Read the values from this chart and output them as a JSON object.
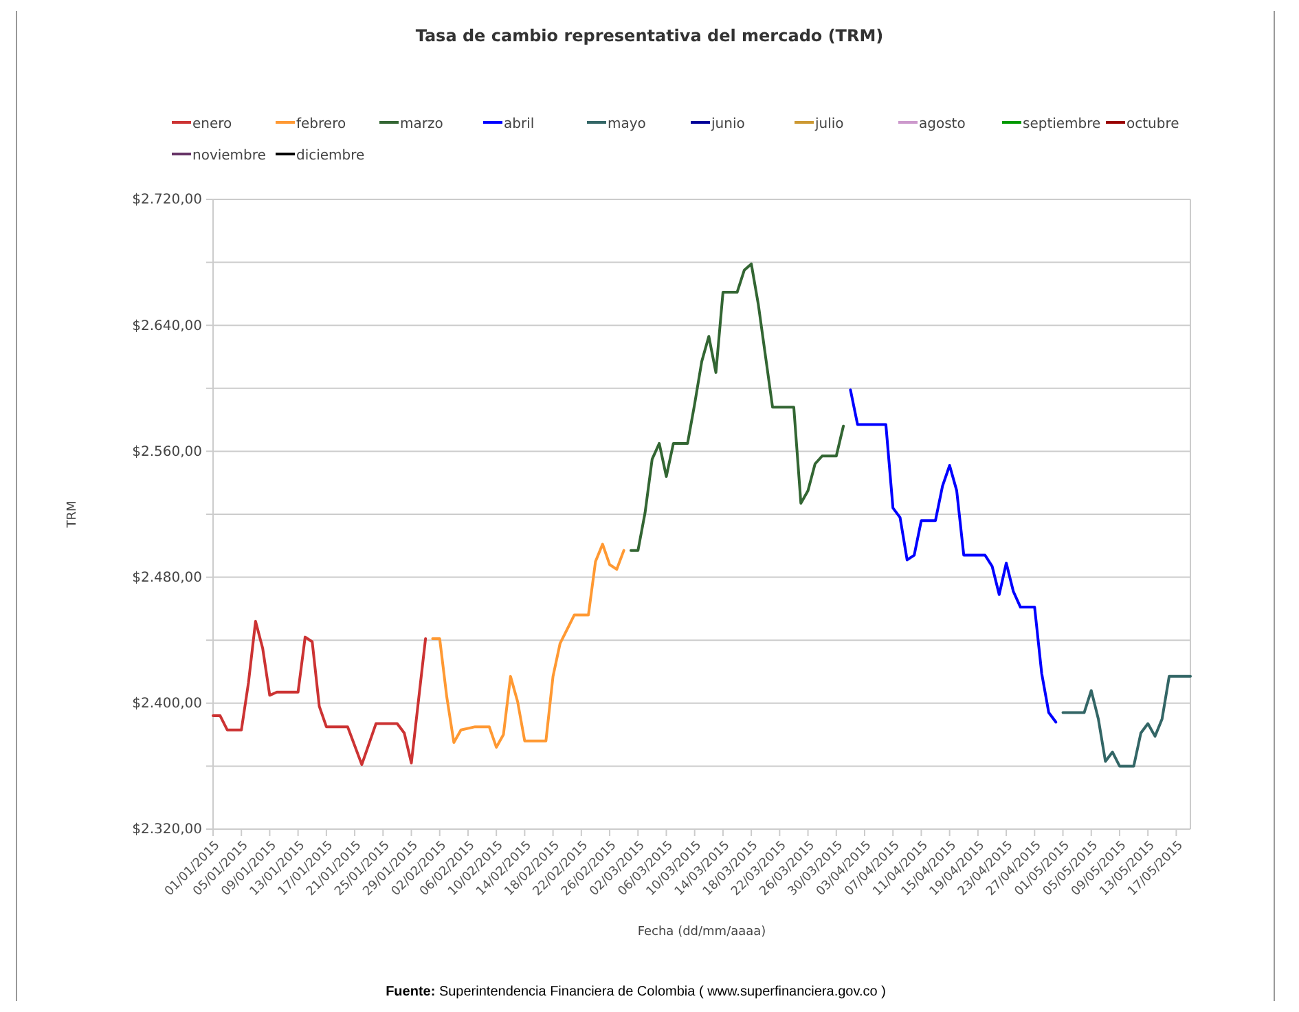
{
  "chart_data": {
    "type": "line",
    "title": "Tasa de cambio representativa del mercado (TRM)",
    "xlabel": "Fecha (dd/mm/aaaa)",
    "ylabel": "TRM",
    "legend": "top",
    "grid": "y",
    "marker": "none",
    "line_style": "solid",
    "xlim": [
      "2015-01-01",
      "2015-05-19"
    ],
    "xticks": [
      {
        "value": "2015-01-01",
        "label": "01/01/2015"
      },
      {
        "value": "2015-01-05",
        "label": "05/01/2015"
      },
      {
        "value": "2015-01-09",
        "label": "09/01/2015"
      },
      {
        "value": "2015-01-13",
        "label": "13/01/2015"
      },
      {
        "value": "2015-01-17",
        "label": "17/01/2015"
      },
      {
        "value": "2015-01-21",
        "label": "21/01/2015"
      },
      {
        "value": "2015-01-25",
        "label": "25/01/2015"
      },
      {
        "value": "2015-01-29",
        "label": "29/01/2015"
      },
      {
        "value": "2015-02-02",
        "label": "02/02/2015"
      },
      {
        "value": "2015-02-06",
        "label": "06/02/2015"
      },
      {
        "value": "2015-02-10",
        "label": "10/02/2015"
      },
      {
        "value": "2015-02-14",
        "label": "14/02/2015"
      },
      {
        "value": "2015-02-18",
        "label": "18/02/2015"
      },
      {
        "value": "2015-02-22",
        "label": "22/02/2015"
      },
      {
        "value": "2015-02-26",
        "label": "26/02/2015"
      },
      {
        "value": "2015-03-02",
        "label": "02/03/2015"
      },
      {
        "value": "2015-03-06",
        "label": "06/03/2015"
      },
      {
        "value": "2015-03-10",
        "label": "10/03/2015"
      },
      {
        "value": "2015-03-14",
        "label": "14/03/2015"
      },
      {
        "value": "2015-03-18",
        "label": "18/03/2015"
      },
      {
        "value": "2015-03-22",
        "label": "22/03/2015"
      },
      {
        "value": "2015-03-26",
        "label": "26/03/2015"
      },
      {
        "value": "2015-03-30",
        "label": "30/03/2015"
      },
      {
        "value": "2015-04-03",
        "label": "03/04/2015"
      },
      {
        "value": "2015-04-07",
        "label": "07/04/2015"
      },
      {
        "value": "2015-04-11",
        "label": "11/04/2015"
      },
      {
        "value": "2015-04-15",
        "label": "15/04/2015"
      },
      {
        "value": "2015-04-19",
        "label": "19/04/2015"
      },
      {
        "value": "2015-04-23",
        "label": "23/04/2015"
      },
      {
        "value": "2015-04-27",
        "label": "27/04/2015"
      },
      {
        "value": "2015-05-01",
        "label": "01/05/2015"
      },
      {
        "value": "2015-05-05",
        "label": "05/05/2015"
      },
      {
        "value": "2015-05-09",
        "label": "09/05/2015"
      },
      {
        "value": "2015-05-13",
        "label": "13/05/2015"
      },
      {
        "value": "2015-05-17",
        "label": "17/05/2015"
      }
    ],
    "ylim": [
      2320,
      2720
    ],
    "yticks": [
      {
        "value": 2320,
        "label": "$2.320,00"
      },
      {
        "value": 2360,
        "label": null
      },
      {
        "value": 2400,
        "label": "$2.400,00"
      },
      {
        "value": 2440,
        "label": null
      },
      {
        "value": 2480,
        "label": "$2.480,00"
      },
      {
        "value": 2520,
        "label": null
      },
      {
        "value": 2560,
        "label": "$2.560,00"
      },
      {
        "value": 2600,
        "label": null
      },
      {
        "value": 2640,
        "label": "$2.640,00"
      },
      {
        "value": 2680,
        "label": null
      },
      {
        "value": 2720,
        "label": "$2.720,00"
      }
    ],
    "annotations": [
      "Fuente: Superintendencia Financiera de Colombia ( www.superfinanciera.gov.co )"
    ],
    "series": [
      {
        "name": "enero",
        "color": "#cc3333",
        "x": [
          "2015-01-01",
          "2015-01-02",
          "2015-01-03",
          "2015-01-05",
          "2015-01-06",
          "2015-01-07",
          "2015-01-08",
          "2015-01-09",
          "2015-01-10",
          "2015-01-13",
          "2015-01-14",
          "2015-01-15",
          "2015-01-16",
          "2015-01-17",
          "2015-01-20",
          "2015-01-22",
          "2015-01-24",
          "2015-01-27",
          "2015-01-28",
          "2015-01-29",
          "2015-01-31"
        ],
        "values": [
          2392,
          2392,
          2383,
          2383,
          2413,
          2452,
          2435,
          2405,
          2407,
          2407,
          2442,
          2439,
          2398,
          2385,
          2385,
          2361,
          2387,
          2387,
          2381,
          2362,
          2441
        ]
      },
      {
        "name": "febrero",
        "color": "#ff9933",
        "x": [
          "2015-02-01",
          "2015-02-02",
          "2015-02-03",
          "2015-02-04",
          "2015-02-05",
          "2015-02-07",
          "2015-02-09",
          "2015-02-10",
          "2015-02-11",
          "2015-02-12",
          "2015-02-13",
          "2015-02-14",
          "2015-02-17",
          "2015-02-18",
          "2015-02-19",
          "2015-02-21",
          "2015-02-23",
          "2015-02-24",
          "2015-02-25",
          "2015-02-26",
          "2015-02-27",
          "2015-02-28"
        ],
        "values": [
          2441,
          2441,
          2404,
          2375,
          2383,
          2385,
          2385,
          2372,
          2380,
          2417,
          2401,
          2376,
          2376,
          2417,
          2438,
          2456,
          2456,
          2490,
          2501,
          2488,
          2485,
          2497
        ]
      },
      {
        "name": "marzo",
        "color": "#336633",
        "x": [
          "2015-03-01",
          "2015-03-02",
          "2015-03-03",
          "2015-03-04",
          "2015-03-05",
          "2015-03-06",
          "2015-03-07",
          "2015-03-09",
          "2015-03-10",
          "2015-03-11",
          "2015-03-12",
          "2015-03-13",
          "2015-03-14",
          "2015-03-16",
          "2015-03-17",
          "2015-03-18",
          "2015-03-19",
          "2015-03-21",
          "2015-03-24",
          "2015-03-25",
          "2015-03-26",
          "2015-03-27",
          "2015-03-28",
          "2015-03-30",
          "2015-03-31"
        ],
        "values": [
          2497,
          2497,
          2521,
          2555,
          2565,
          2544,
          2565,
          2565,
          2590,
          2617,
          2633,
          2610,
          2661,
          2661,
          2675,
          2679,
          2653,
          2588,
          2588,
          2527,
          2535,
          2552,
          2557,
          2557,
          2576
        ]
      },
      {
        "name": "abril",
        "color": "#0000ff",
        "x": [
          "2015-04-01",
          "2015-04-02",
          "2015-04-06",
          "2015-04-07",
          "2015-04-08",
          "2015-04-09",
          "2015-04-10",
          "2015-04-11",
          "2015-04-13",
          "2015-04-14",
          "2015-04-15",
          "2015-04-16",
          "2015-04-17",
          "2015-04-20",
          "2015-04-21",
          "2015-04-22",
          "2015-04-23",
          "2015-04-24",
          "2015-04-25",
          "2015-04-27",
          "2015-04-28",
          "2015-04-29",
          "2015-04-30"
        ],
        "values": [
          2599,
          2577,
          2577,
          2524,
          2518,
          2491,
          2494,
          2516,
          2516,
          2538,
          2551,
          2535,
          2494,
          2494,
          2487,
          2469,
          2489,
          2471,
          2461,
          2461,
          2419,
          2394,
          2388
        ]
      },
      {
        "name": "mayo",
        "color": "#336666",
        "x": [
          "2015-05-01",
          "2015-05-04",
          "2015-05-05",
          "2015-05-06",
          "2015-05-07",
          "2015-05-08",
          "2015-05-09",
          "2015-05-11",
          "2015-05-12",
          "2015-05-13",
          "2015-05-14",
          "2015-05-15",
          "2015-05-16",
          "2015-05-19"
        ],
        "values": [
          2394,
          2394,
          2408,
          2390,
          2363,
          2369,
          2360,
          2360,
          2381,
          2387,
          2379,
          2390,
          2417,
          2417
        ]
      },
      {
        "name": "junio",
        "color": "#000099"
      },
      {
        "name": "julio",
        "color": "#cc9933"
      },
      {
        "name": "agosto",
        "color": "#cc99cc"
      },
      {
        "name": "septiembre",
        "color": "#009900"
      },
      {
        "name": "octubre",
        "color": "#990000"
      },
      {
        "name": "noviembre",
        "color": "#663366"
      },
      {
        "name": "diciembre",
        "color": "#000000"
      }
    ]
  }
}
